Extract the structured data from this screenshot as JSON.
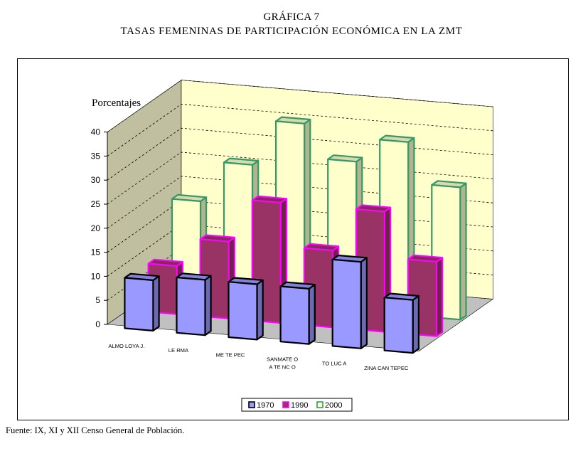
{
  "header": {
    "title_line1": "GRÁFICA 7",
    "title_line2": "TASAS FEMENINAS DE PARTICIPACIÓN ECONÓMICA EN LA ZMT"
  },
  "footer": {
    "source": "Fuente: IX, XI y XII Censo General de Población."
  },
  "chart_data": {
    "type": "bar",
    "ylabel": "Porcentajes",
    "ylim": [
      0,
      40
    ],
    "yticks": [
      0,
      5,
      10,
      15,
      20,
      25,
      30,
      35,
      40
    ],
    "grid": true,
    "legend_position": "bottom",
    "categories": [
      "ALMO LOYA J.",
      "LE RMA",
      "ME TE PEC",
      "SANMATE O\nA TE NC O",
      "TO LUC A",
      "ZINA CAN TEPEC"
    ],
    "series": [
      {
        "name": "1970",
        "values": [
          10.5,
          11.5,
          11.5,
          11.5,
          18,
          11
        ],
        "color": "#9999ff",
        "edge": "#000000"
      },
      {
        "name": "1990",
        "values": [
          10,
          16,
          25,
          16,
          25,
          15.5
        ],
        "color": "#993366",
        "edge": "#ff00ff"
      },
      {
        "name": "2000",
        "values": [
          20,
          28.5,
          38,
          31,
          36,
          27.5
        ],
        "color": "#ffffcc",
        "edge": "#339966"
      }
    ],
    "colors": {
      "back_wall": "#ffffcc",
      "side_wall": "#c0c0a0",
      "floor": "#c0c0c0"
    }
  }
}
